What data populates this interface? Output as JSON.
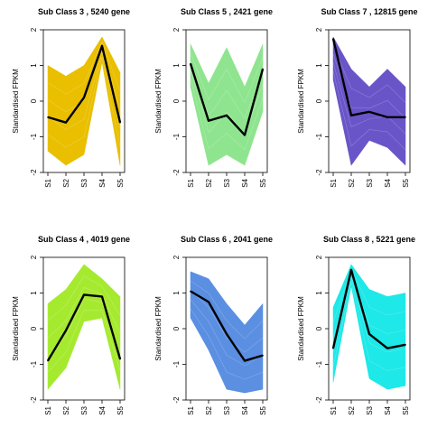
{
  "chart_data": [
    {
      "type": "line",
      "title": "Sub Class  3  , 5240 gene",
      "ylabel": "Standardised FPKM",
      "categories": [
        "S1",
        "S2",
        "S3",
        "S4",
        "S5"
      ],
      "ylim": [
        -2,
        2
      ],
      "yticks": [
        -2,
        -1,
        0,
        1,
        2
      ],
      "band_color": "#e9bf00",
      "band_upper": [
        1.0,
        0.7,
        1.0,
        1.8,
        0.8
      ],
      "band_lower": [
        -1.4,
        -1.8,
        -1.5,
        1.1,
        -1.8
      ],
      "series": [
        {
          "values": [
            -0.45,
            -0.6,
            0.1,
            1.55,
            -0.6
          ]
        }
      ]
    },
    {
      "type": "line",
      "title": "Sub Class  5  , 2421 gene",
      "ylabel": "Standardised FPKM",
      "categories": [
        "S1",
        "S2",
        "S3",
        "S4",
        "S5"
      ],
      "ylim": [
        -2,
        2
      ],
      "yticks": [
        -2,
        -1,
        0,
        1,
        2
      ],
      "band_color": "#8fe58f",
      "band_upper": [
        1.6,
        0.5,
        1.5,
        0.4,
        1.6
      ],
      "band_lower": [
        0.4,
        -1.8,
        -1.5,
        -1.8,
        -0.3
      ],
      "series": [
        {
          "values": [
            1.05,
            -0.55,
            -0.4,
            -0.95,
            0.9
          ]
        }
      ]
    },
    {
      "type": "line",
      "title": "Sub Class  7  , 12815 gene",
      "ylabel": "Standardised FPKM",
      "categories": [
        "S1",
        "S2",
        "S3",
        "S4",
        "S5"
      ],
      "ylim": [
        -2,
        2
      ],
      "yticks": [
        -2,
        -1,
        0,
        1,
        2
      ],
      "band_color": "#6a55c8",
      "band_upper": [
        1.8,
        0.9,
        0.4,
        0.9,
        0.4
      ],
      "band_lower": [
        0.6,
        -1.8,
        -1.1,
        -1.3,
        -1.8
      ],
      "series": [
        {
          "values": [
            1.75,
            -0.4,
            -0.3,
            -0.45,
            -0.45
          ]
        }
      ]
    },
    {
      "type": "line",
      "title": "Sub Class  4  , 4019 gene",
      "ylabel": "Standardised FPKM",
      "categories": [
        "S1",
        "S2",
        "S3",
        "S4",
        "S5"
      ],
      "ylim": [
        -2,
        2
      ],
      "yticks": [
        -2,
        -1,
        0,
        1,
        2
      ],
      "band_color": "#a6ea30",
      "band_upper": [
        0.7,
        1.1,
        1.8,
        1.4,
        0.9
      ],
      "band_lower": [
        -1.7,
        -1.1,
        0.2,
        0.3,
        -1.7
      ],
      "series": [
        {
          "values": [
            -0.9,
            -0.05,
            0.95,
            0.9,
            -0.85
          ]
        }
      ]
    },
    {
      "type": "line",
      "title": "Sub Class  6  , 2041 gene",
      "ylabel": "Standardised FPKM",
      "categories": [
        "S1",
        "S2",
        "S3",
        "S4",
        "S5"
      ],
      "ylim": [
        -2,
        2
      ],
      "yticks": [
        -2,
        -1,
        0,
        1,
        2
      ],
      "band_color": "#5b8fe2",
      "band_upper": [
        1.6,
        1.4,
        0.7,
        0.1,
        0.7
      ],
      "band_lower": [
        0.3,
        -0.6,
        -1.7,
        -1.8,
        -1.7
      ],
      "series": [
        {
          "values": [
            1.05,
            0.75,
            -0.15,
            -0.9,
            -0.75
          ]
        }
      ]
    },
    {
      "type": "line",
      "title": "Sub Class  8  , 5221 gene",
      "ylabel": "Standardised FPKM",
      "categories": [
        "S1",
        "S2",
        "S3",
        "S4",
        "S5"
      ],
      "ylim": [
        -2,
        2
      ],
      "yticks": [
        -2,
        -1,
        0,
        1,
        2
      ],
      "band_color": "#1ee8e8",
      "band_upper": [
        0.6,
        1.8,
        1.1,
        0.9,
        1.0
      ],
      "band_lower": [
        -1.5,
        1.2,
        -1.4,
        -1.7,
        -1.6
      ],
      "series": [
        {
          "values": [
            -0.55,
            1.65,
            -0.15,
            -0.55,
            -0.45
          ]
        }
      ]
    }
  ]
}
